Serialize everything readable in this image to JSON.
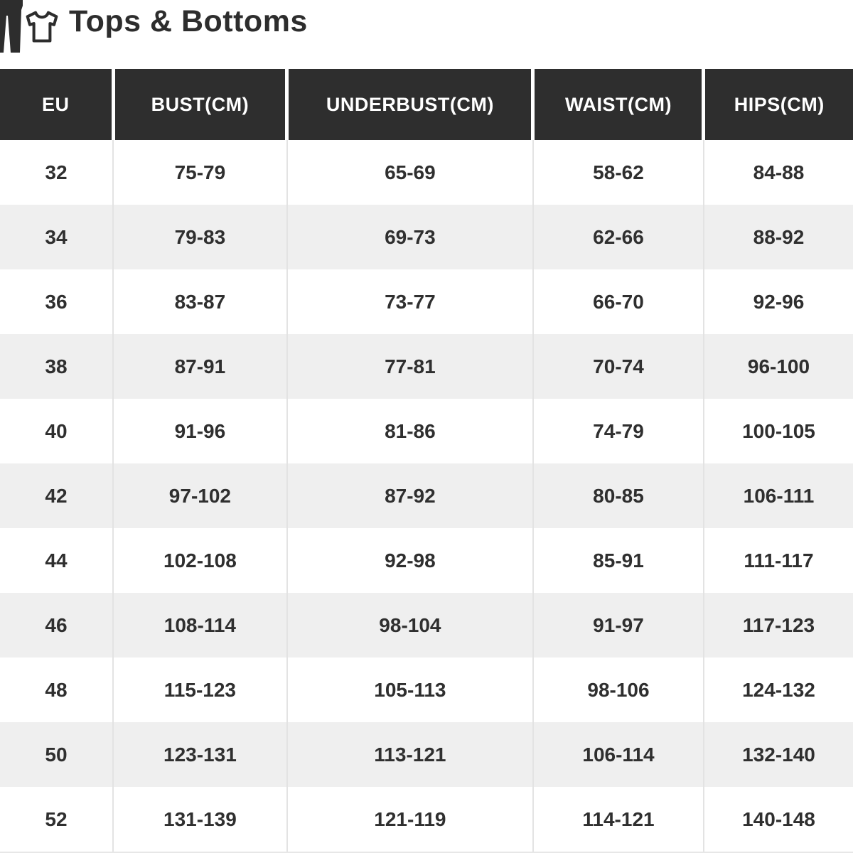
{
  "page": {
    "title": "Tops & Bottoms"
  },
  "icons": [
    {
      "name": "pants-icon"
    },
    {
      "name": "tshirt-icon"
    }
  ],
  "colors": {
    "header_bg": "#2e2e2e",
    "header_text": "#ffffff",
    "row_alt_bg": "#efefef",
    "body_text": "#2f2f2f",
    "title_text": "#2d2d2d"
  },
  "chart_data": {
    "type": "table",
    "title": "Tops & Bottoms",
    "columns": [
      "EU",
      "BUST(CM)",
      "UNDERBUST(CM)",
      "WAIST(CM)",
      "HIPS(CM)"
    ],
    "rows": [
      [
        "32",
        "75-79",
        "65-69",
        "58-62",
        "84-88"
      ],
      [
        "34",
        "79-83",
        "69-73",
        "62-66",
        "88-92"
      ],
      [
        "36",
        "83-87",
        "73-77",
        "66-70",
        "92-96"
      ],
      [
        "38",
        "87-91",
        "77-81",
        "70-74",
        "96-100"
      ],
      [
        "40",
        "91-96",
        "81-86",
        "74-79",
        "100-105"
      ],
      [
        "42",
        "97-102",
        "87-92",
        "80-85",
        "106-111"
      ],
      [
        "44",
        "102-108",
        "92-98",
        "85-91",
        "111-117"
      ],
      [
        "46",
        "108-114",
        "98-104",
        "91-97",
        "117-123"
      ],
      [
        "48",
        "115-123",
        "105-113",
        "98-106",
        "124-132"
      ],
      [
        "50",
        "123-131",
        "113-121",
        "106-114",
        "132-140"
      ],
      [
        "52",
        "131-139",
        "121-119",
        "114-121",
        "140-148"
      ]
    ],
    "layout": {
      "header_style": "dark-bar-white-text",
      "row_striping": "even-rows-light-gray",
      "column_alignment": "center"
    }
  }
}
